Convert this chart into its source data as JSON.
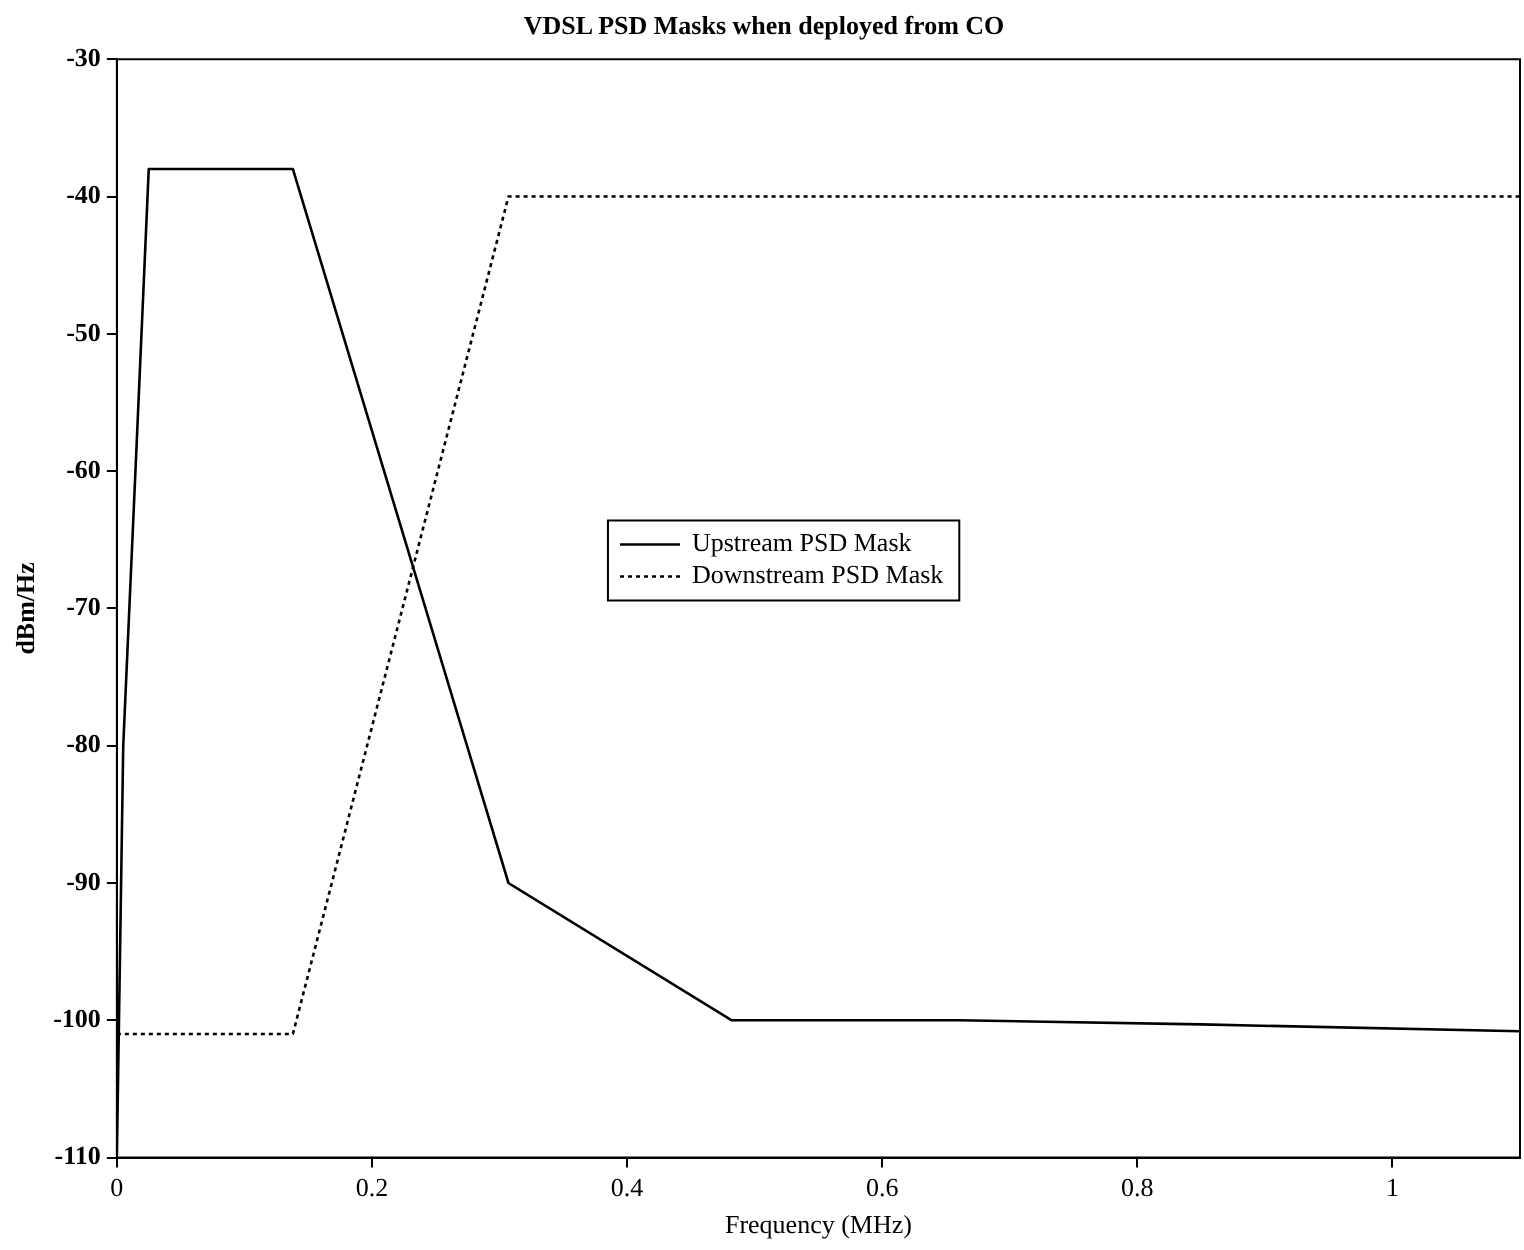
{
  "chart_data": {
    "type": "line",
    "title": "VDSL PSD Masks when deployed from CO",
    "xlabel": "Frequency (MHz)",
    "ylabel": "dBm/Hz",
    "series": [
      {
        "name": "Upstream PSD Mask",
        "color": "#000000",
        "line_style": "solid",
        "x": [
          0,
          0.005,
          0.016,
          0.025,
          0.138,
          0.307,
          0.482,
          0.66,
          0.85,
          1.1
        ],
        "values": [
          -110,
          -80,
          -57,
          -38,
          -38,
          -90,
          -100,
          -100,
          -100.3,
          -100.8
        ]
      },
      {
        "name": "Downstream PSD Mask",
        "color": "#000000",
        "line_style": "dotted",
        "x": [
          0,
          0.138,
          0.307,
          1.1
        ],
        "values": [
          -101,
          -101,
          -40,
          -40
        ]
      }
    ],
    "xlim": [
      0,
      1.1
    ],
    "xticks": [
      0,
      0.2,
      0.4,
      0.6,
      0.8,
      1
    ],
    "ylim": [
      -110,
      -30
    ],
    "yticks": [
      -110,
      -100,
      -90,
      -80,
      -70,
      -60,
      -50,
      -40,
      -30
    ],
    "grid": false,
    "legend": "center",
    "marker": "none"
  }
}
